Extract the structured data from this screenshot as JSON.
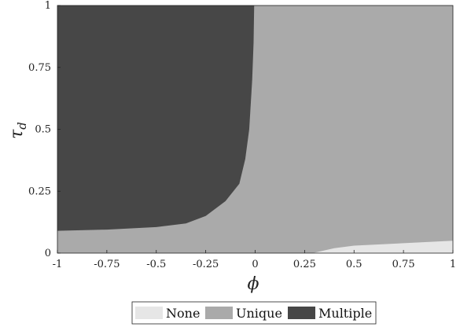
{
  "chart_data": {
    "type": "area",
    "xlabel": "ϕ",
    "ylabel_main": "τ",
    "ylabel_sub": "d",
    "xlim": [
      -1,
      1
    ],
    "ylim": [
      0,
      1
    ],
    "x_ticks": [
      -1,
      -0.75,
      -0.5,
      -0.25,
      0,
      0.25,
      0.5,
      0.75,
      1
    ],
    "x_tick_labels": [
      "-1",
      "-0.75",
      "-0.5",
      "-0.25",
      "0",
      "0.25",
      "0.5",
      "0.75",
      "1"
    ],
    "y_ticks": [
      0,
      0.25,
      0.5,
      0.75,
      1
    ],
    "y_tick_labels": [
      "0",
      "0.25",
      "0.5",
      "0.75",
      "1"
    ],
    "legend_position": "bottom",
    "regions": [
      {
        "name": "None",
        "color": "#e6e6e6"
      },
      {
        "name": "Unique",
        "color": "#aaaaaa"
      },
      {
        "name": "Multiple",
        "color": "#474747"
      }
    ],
    "multiple_region_boundary": [
      {
        "x": -1.0,
        "y": 0.09
      },
      {
        "x": -0.75,
        "y": 0.095
      },
      {
        "x": -0.5,
        "y": 0.105
      },
      {
        "x": -0.35,
        "y": 0.12
      },
      {
        "x": -0.25,
        "y": 0.15
      },
      {
        "x": -0.15,
        "y": 0.21
      },
      {
        "x": -0.08,
        "y": 0.28
      },
      {
        "x": -0.05,
        "y": 0.38
      },
      {
        "x": -0.03,
        "y": 0.5
      },
      {
        "x": -0.015,
        "y": 0.7
      },
      {
        "x": -0.008,
        "y": 0.85
      },
      {
        "x": -0.005,
        "y": 1.0
      }
    ],
    "none_region_boundary": [
      {
        "x": 0.29,
        "y": 0.0
      },
      {
        "x": 0.4,
        "y": 0.02
      },
      {
        "x": 0.5,
        "y": 0.03
      },
      {
        "x": 0.75,
        "y": 0.04
      },
      {
        "x": 1.0,
        "y": 0.05
      }
    ]
  }
}
